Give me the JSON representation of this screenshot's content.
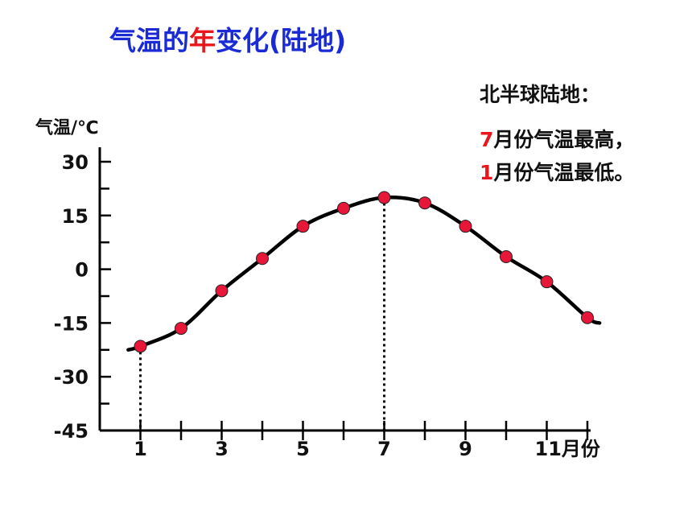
{
  "title": {
    "part1": "气温的",
    "highlight": "年",
    "part2": "变化(陆地)"
  },
  "notes": {
    "heading": "北半球陆地：",
    "line1_num": "7",
    "line1_text": "月份气温最高，",
    "line2_num": "1",
    "line2_text": "月份气温最低。"
  },
  "colors": {
    "title": "#1a2bd6",
    "highlight": "#e8171c",
    "point": "#e8173a",
    "curve": "#000000"
  },
  "chart_data": {
    "type": "line",
    "ylabel": "气温/℃",
    "xlabel": "月份",
    "y_ticks": [
      30,
      15,
      0,
      -15,
      -30,
      -45
    ],
    "ylim": [
      -45,
      30
    ],
    "xlim": [
      0,
      12.5
    ],
    "x_ticks": [
      1,
      2,
      3,
      4,
      5,
      6,
      7,
      8,
      9,
      10,
      11,
      12
    ],
    "x_tick_labels": [
      {
        "x": 1,
        "label": "1"
      },
      {
        "x": 3,
        "label": "3"
      },
      {
        "x": 5,
        "label": "5"
      },
      {
        "x": 7,
        "label": "7"
      },
      {
        "x": 9,
        "label": "9"
      },
      {
        "x": 11,
        "label": "11月份"
      }
    ],
    "series": [
      {
        "x": [
          1,
          2,
          3,
          4,
          5,
          6,
          7,
          8,
          9,
          10,
          11,
          12
        ],
        "values": [
          -21.5,
          -16.5,
          -6,
          3,
          12,
          17,
          20,
          18.5,
          12,
          3.5,
          -3.5,
          -13.5
        ]
      }
    ],
    "curve_ends": {
      "start": [
        0.7,
        -22.5
      ],
      "end": [
        12.3,
        -15
      ]
    },
    "reference_lines": [
      {
        "x": 1,
        "y": -21.5
      },
      {
        "x": 7,
        "y": 20
      }
    ]
  }
}
